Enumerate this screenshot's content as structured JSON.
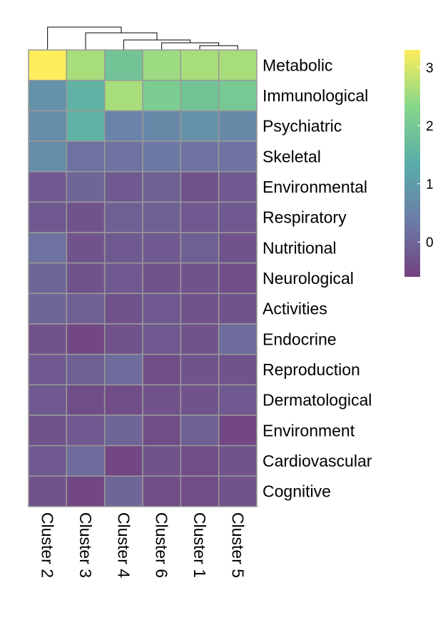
{
  "chart_data": {
    "type": "heatmap",
    "title": "",
    "columns": [
      "Cluster 2",
      "Cluster 3",
      "Cluster 4",
      "Cluster 6",
      "Cluster 1",
      "Cluster 5"
    ],
    "rows": [
      "Metabolic",
      "Immunological",
      "Psychiatric",
      "Skeletal",
      "Environmental",
      "Respiratory",
      "Nutritional",
      "Neurological",
      "Activities",
      "Endocrine",
      "Reproduction",
      "Dermatological",
      "Environment",
      "Cardiovascular",
      "Cognitive"
    ],
    "values": [
      [
        3.3,
        2.6,
        1.9,
        2.5,
        2.6,
        2.6
      ],
      [
        0.8,
        1.5,
        2.6,
        2.1,
        1.9,
        2.0
      ],
      [
        0.7,
        1.5,
        0.5,
        0.6,
        0.8,
        0.6
      ],
      [
        0.7,
        0.2,
        0.2,
        0.3,
        0.2,
        0.2
      ],
      [
        -0.2,
        0.0,
        -0.2,
        -0.1,
        -0.3,
        -0.2
      ],
      [
        -0.2,
        -0.3,
        -0.1,
        -0.1,
        -0.2,
        -0.2
      ],
      [
        0.2,
        -0.3,
        -0.2,
        -0.2,
        -0.1,
        -0.3
      ],
      [
        0.0,
        -0.3,
        -0.2,
        -0.3,
        -0.3,
        -0.4
      ],
      [
        0.0,
        -0.1,
        -0.3,
        -0.2,
        -0.3,
        -0.3
      ],
      [
        -0.3,
        -0.5,
        -0.3,
        -0.2,
        -0.3,
        0.1
      ],
      [
        -0.2,
        -0.1,
        0.1,
        -0.4,
        -0.3,
        -0.3
      ],
      [
        -0.2,
        -0.4,
        -0.4,
        -0.3,
        -0.3,
        -0.2
      ],
      [
        -0.3,
        -0.2,
        0.0,
        -0.4,
        -0.1,
        -0.5
      ],
      [
        -0.2,
        0.1,
        -0.5,
        -0.3,
        -0.4,
        -0.3
      ],
      [
        -0.3,
        -0.5,
        0.0,
        -0.4,
        -0.4,
        -0.3
      ]
    ],
    "colorbar": {
      "ticks": [
        3,
        2,
        1,
        0
      ],
      "range": [
        -0.6,
        3.3
      ],
      "palette": [
        "#440154",
        "#3b528b",
        "#21918c",
        "#5ec962",
        "#fde725"
      ],
      "alpha": 0.75
    },
    "column_dendrogram": true,
    "grid_color": "#999999"
  }
}
